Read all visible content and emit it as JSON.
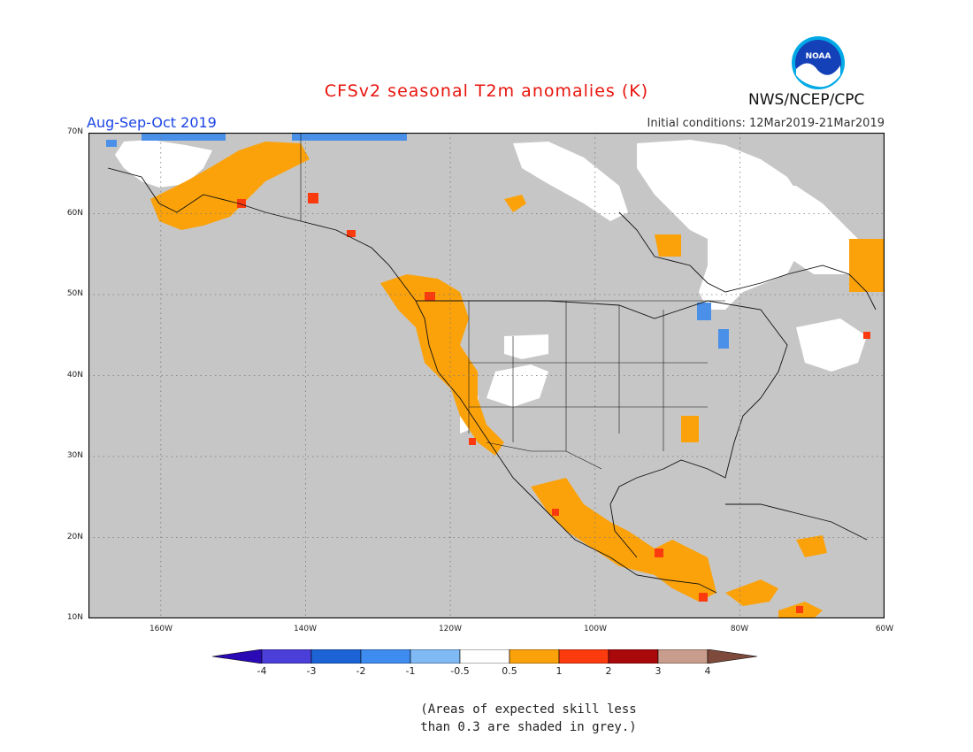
{
  "title": "CFSv2 seasonal T2m anomalies (K)",
  "season": "Aug-Sep-Oct 2019",
  "initial_conditions": "Initial conditions: 12Mar2019-21Mar2019",
  "agency": "NWS/NCEP/CPC",
  "logo_text": "NOAA",
  "lat_labels": [
    "70N",
    "60N",
    "50N",
    "40N",
    "30N",
    "20N",
    "10N"
  ],
  "lon_labels": [
    "160W",
    "140W",
    "120W",
    "100W",
    "80W",
    "60W"
  ],
  "colorbar": {
    "labels": [
      "-4",
      "-3",
      "-2",
      "-1",
      "-0.5",
      "0.5",
      "1",
      "2",
      "3",
      "4"
    ],
    "colors": [
      "#2a0ab4",
      "#4a3fd9",
      "#1c64d6",
      "#3f8cf0",
      "#80baf5",
      "#ffffff",
      "#fba20b",
      "#fb3a0e",
      "#a9090b",
      "#c89d8e",
      "#7e4a3b"
    ]
  },
  "note_line1": "(Areas of expected skill less",
  "note_line2": "than 0.3 are shaded in grey.)",
  "colors": {
    "grey": "#c6c6c6",
    "white": "#ffffff",
    "orange": "#fba20b",
    "red": "#fb3a0e",
    "blue": "#4a90e8"
  }
}
